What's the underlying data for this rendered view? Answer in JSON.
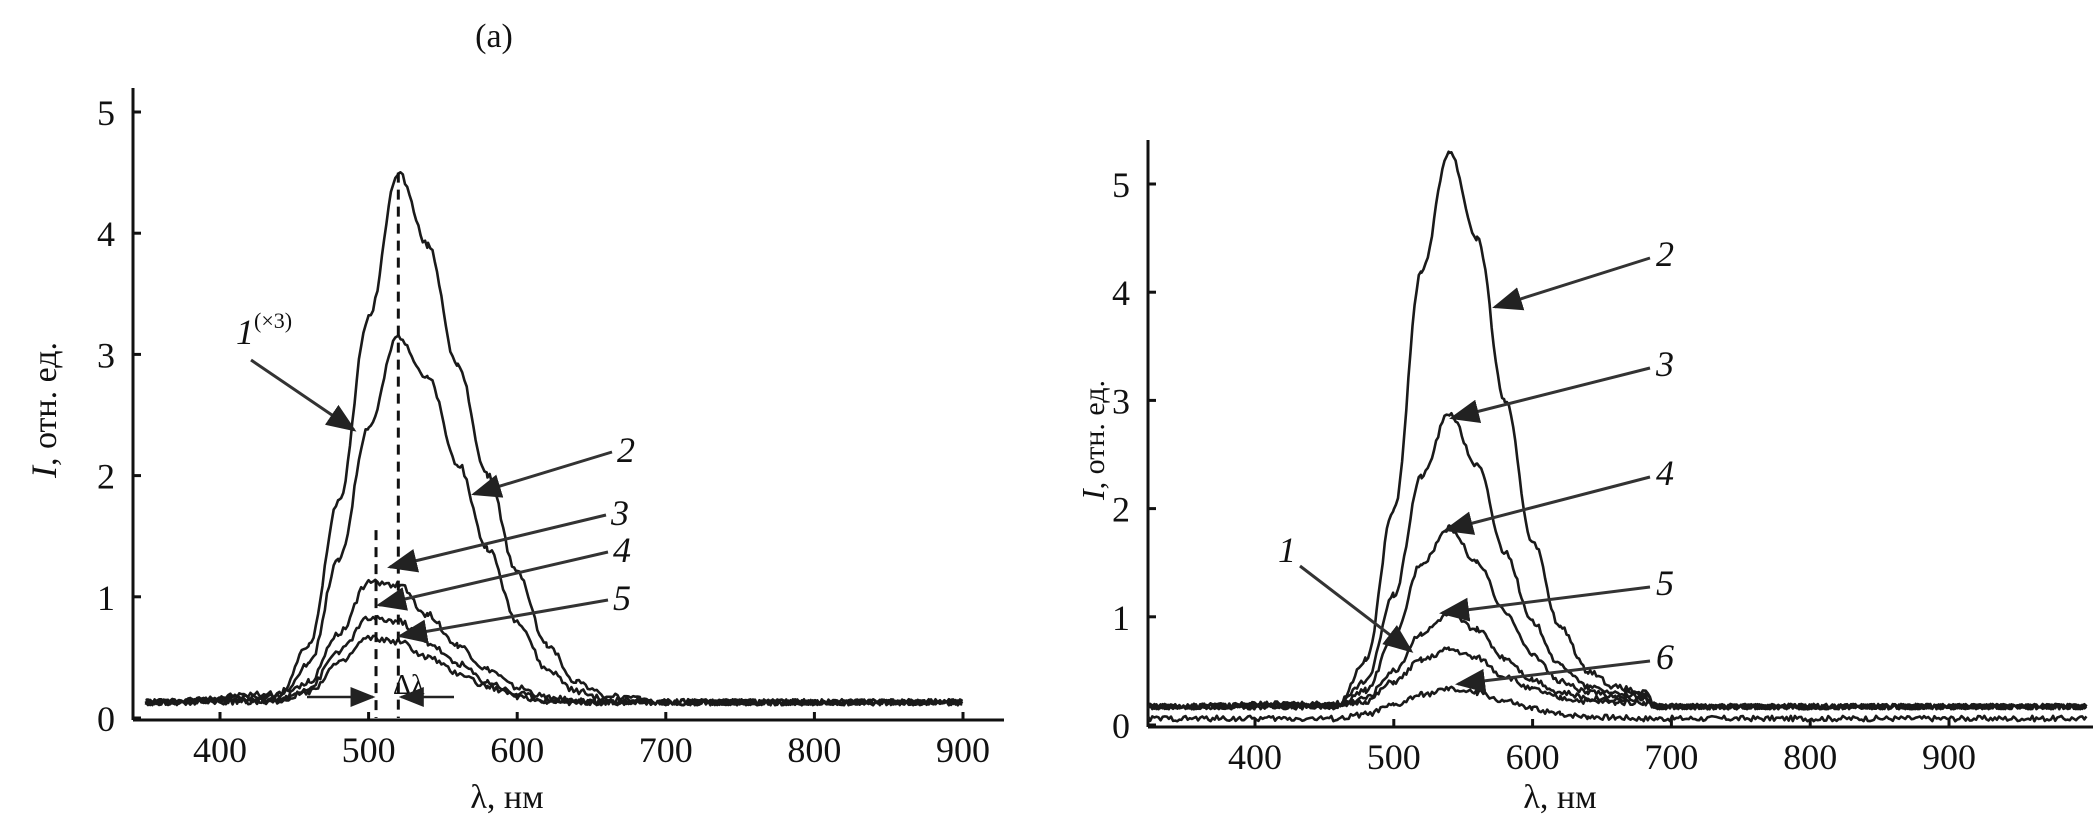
{
  "chart_data": [
    {
      "type": "line",
      "panel_label": "(a)",
      "xlabel": "λ, нм",
      "ylabel_var": "I",
      "ylabel_rest": ", отн. ед.",
      "xlim": [
        342,
        928
      ],
      "ylim": [
        0,
        5
      ],
      "xticks": [
        400,
        500,
        600,
        700,
        800,
        900
      ],
      "yticks": [
        0,
        1,
        2,
        3,
        4,
        5
      ],
      "grid": false,
      "x": [
        350,
        440,
        460,
        480,
        500,
        520,
        540,
        560,
        580,
        600,
        620,
        640,
        660,
        700,
        900
      ],
      "series": [
        {
          "name": "1",
          "label_sup": "(×3)",
          "values": [
            0.13,
            0.2,
            0.6,
            1.8,
            3.3,
            4.5,
            3.9,
            2.9,
            2.0,
            1.2,
            0.6,
            0.3,
            0.18,
            0.13,
            0.13
          ]
        },
        {
          "name": "2",
          "values": [
            0.13,
            0.18,
            0.45,
            1.3,
            2.4,
            3.15,
            2.8,
            2.1,
            1.4,
            0.8,
            0.4,
            0.22,
            0.15,
            0.13,
            0.13
          ]
        },
        {
          "name": "3",
          "values": [
            0.13,
            0.15,
            0.3,
            0.7,
            1.12,
            1.1,
            0.85,
            0.6,
            0.4,
            0.25,
            0.17,
            0.14,
            0.13,
            0.13,
            0.13
          ]
        },
        {
          "name": "4",
          "values": [
            0.13,
            0.14,
            0.25,
            0.55,
            0.82,
            0.8,
            0.62,
            0.45,
            0.3,
            0.2,
            0.15,
            0.13,
            0.13,
            0.13,
            0.13
          ]
        },
        {
          "name": "5",
          "values": [
            0.13,
            0.14,
            0.22,
            0.45,
            0.66,
            0.63,
            0.5,
            0.37,
            0.26,
            0.18,
            0.14,
            0.13,
            0.13,
            0.13,
            0.13
          ]
        }
      ],
      "annotations": {
        "dashed_lines_at": [
          505,
          520
        ],
        "shift_label": "Δλ"
      }
    },
    {
      "type": "line",
      "xlabel": "λ, нм",
      "ylabel_var": "I",
      "ylabel_rest": ", отн. ед.",
      "xlim": [
        323,
        1004
      ],
      "ylim": [
        0,
        5.4
      ],
      "xticks": [
        400,
        500,
        600,
        700,
        800,
        900
      ],
      "yticks": [
        0,
        1,
        2,
        3,
        4,
        5
      ],
      "grid": false,
      "x": [
        323,
        460,
        480,
        500,
        520,
        540,
        560,
        580,
        600,
        620,
        640,
        660,
        680,
        690,
        1000
      ],
      "series": [
        {
          "name": "1",
          "values": [
            0.17,
            0.17,
            0.22,
            0.4,
            0.6,
            0.7,
            0.62,
            0.45,
            0.33,
            0.25,
            0.22,
            0.21,
            0.21,
            0.17,
            0.17
          ]
        },
        {
          "name": "2",
          "values": [
            0.17,
            0.2,
            0.6,
            2.0,
            4.2,
            5.3,
            4.5,
            3.0,
            1.7,
            0.9,
            0.5,
            0.35,
            0.3,
            0.17,
            0.17
          ]
        },
        {
          "name": "3",
          "values": [
            0.17,
            0.19,
            0.4,
            1.2,
            2.3,
            2.88,
            2.4,
            1.6,
            0.95,
            0.55,
            0.35,
            0.3,
            0.28,
            0.17,
            0.17
          ]
        },
        {
          "name": "4",
          "values": [
            0.17,
            0.18,
            0.32,
            0.8,
            1.5,
            1.82,
            1.5,
            1.05,
            0.65,
            0.4,
            0.3,
            0.27,
            0.26,
            0.17,
            0.17
          ]
        },
        {
          "name": "5",
          "values": [
            0.17,
            0.18,
            0.25,
            0.5,
            0.85,
            1.02,
            0.88,
            0.62,
            0.42,
            0.3,
            0.25,
            0.24,
            0.24,
            0.17,
            0.17
          ]
        },
        {
          "name": "6",
          "values": [
            0.06,
            0.06,
            0.1,
            0.18,
            0.28,
            0.33,
            0.3,
            0.22,
            0.15,
            0.1,
            0.08,
            0.07,
            0.06,
            0.06,
            0.06
          ]
        }
      ]
    }
  ]
}
